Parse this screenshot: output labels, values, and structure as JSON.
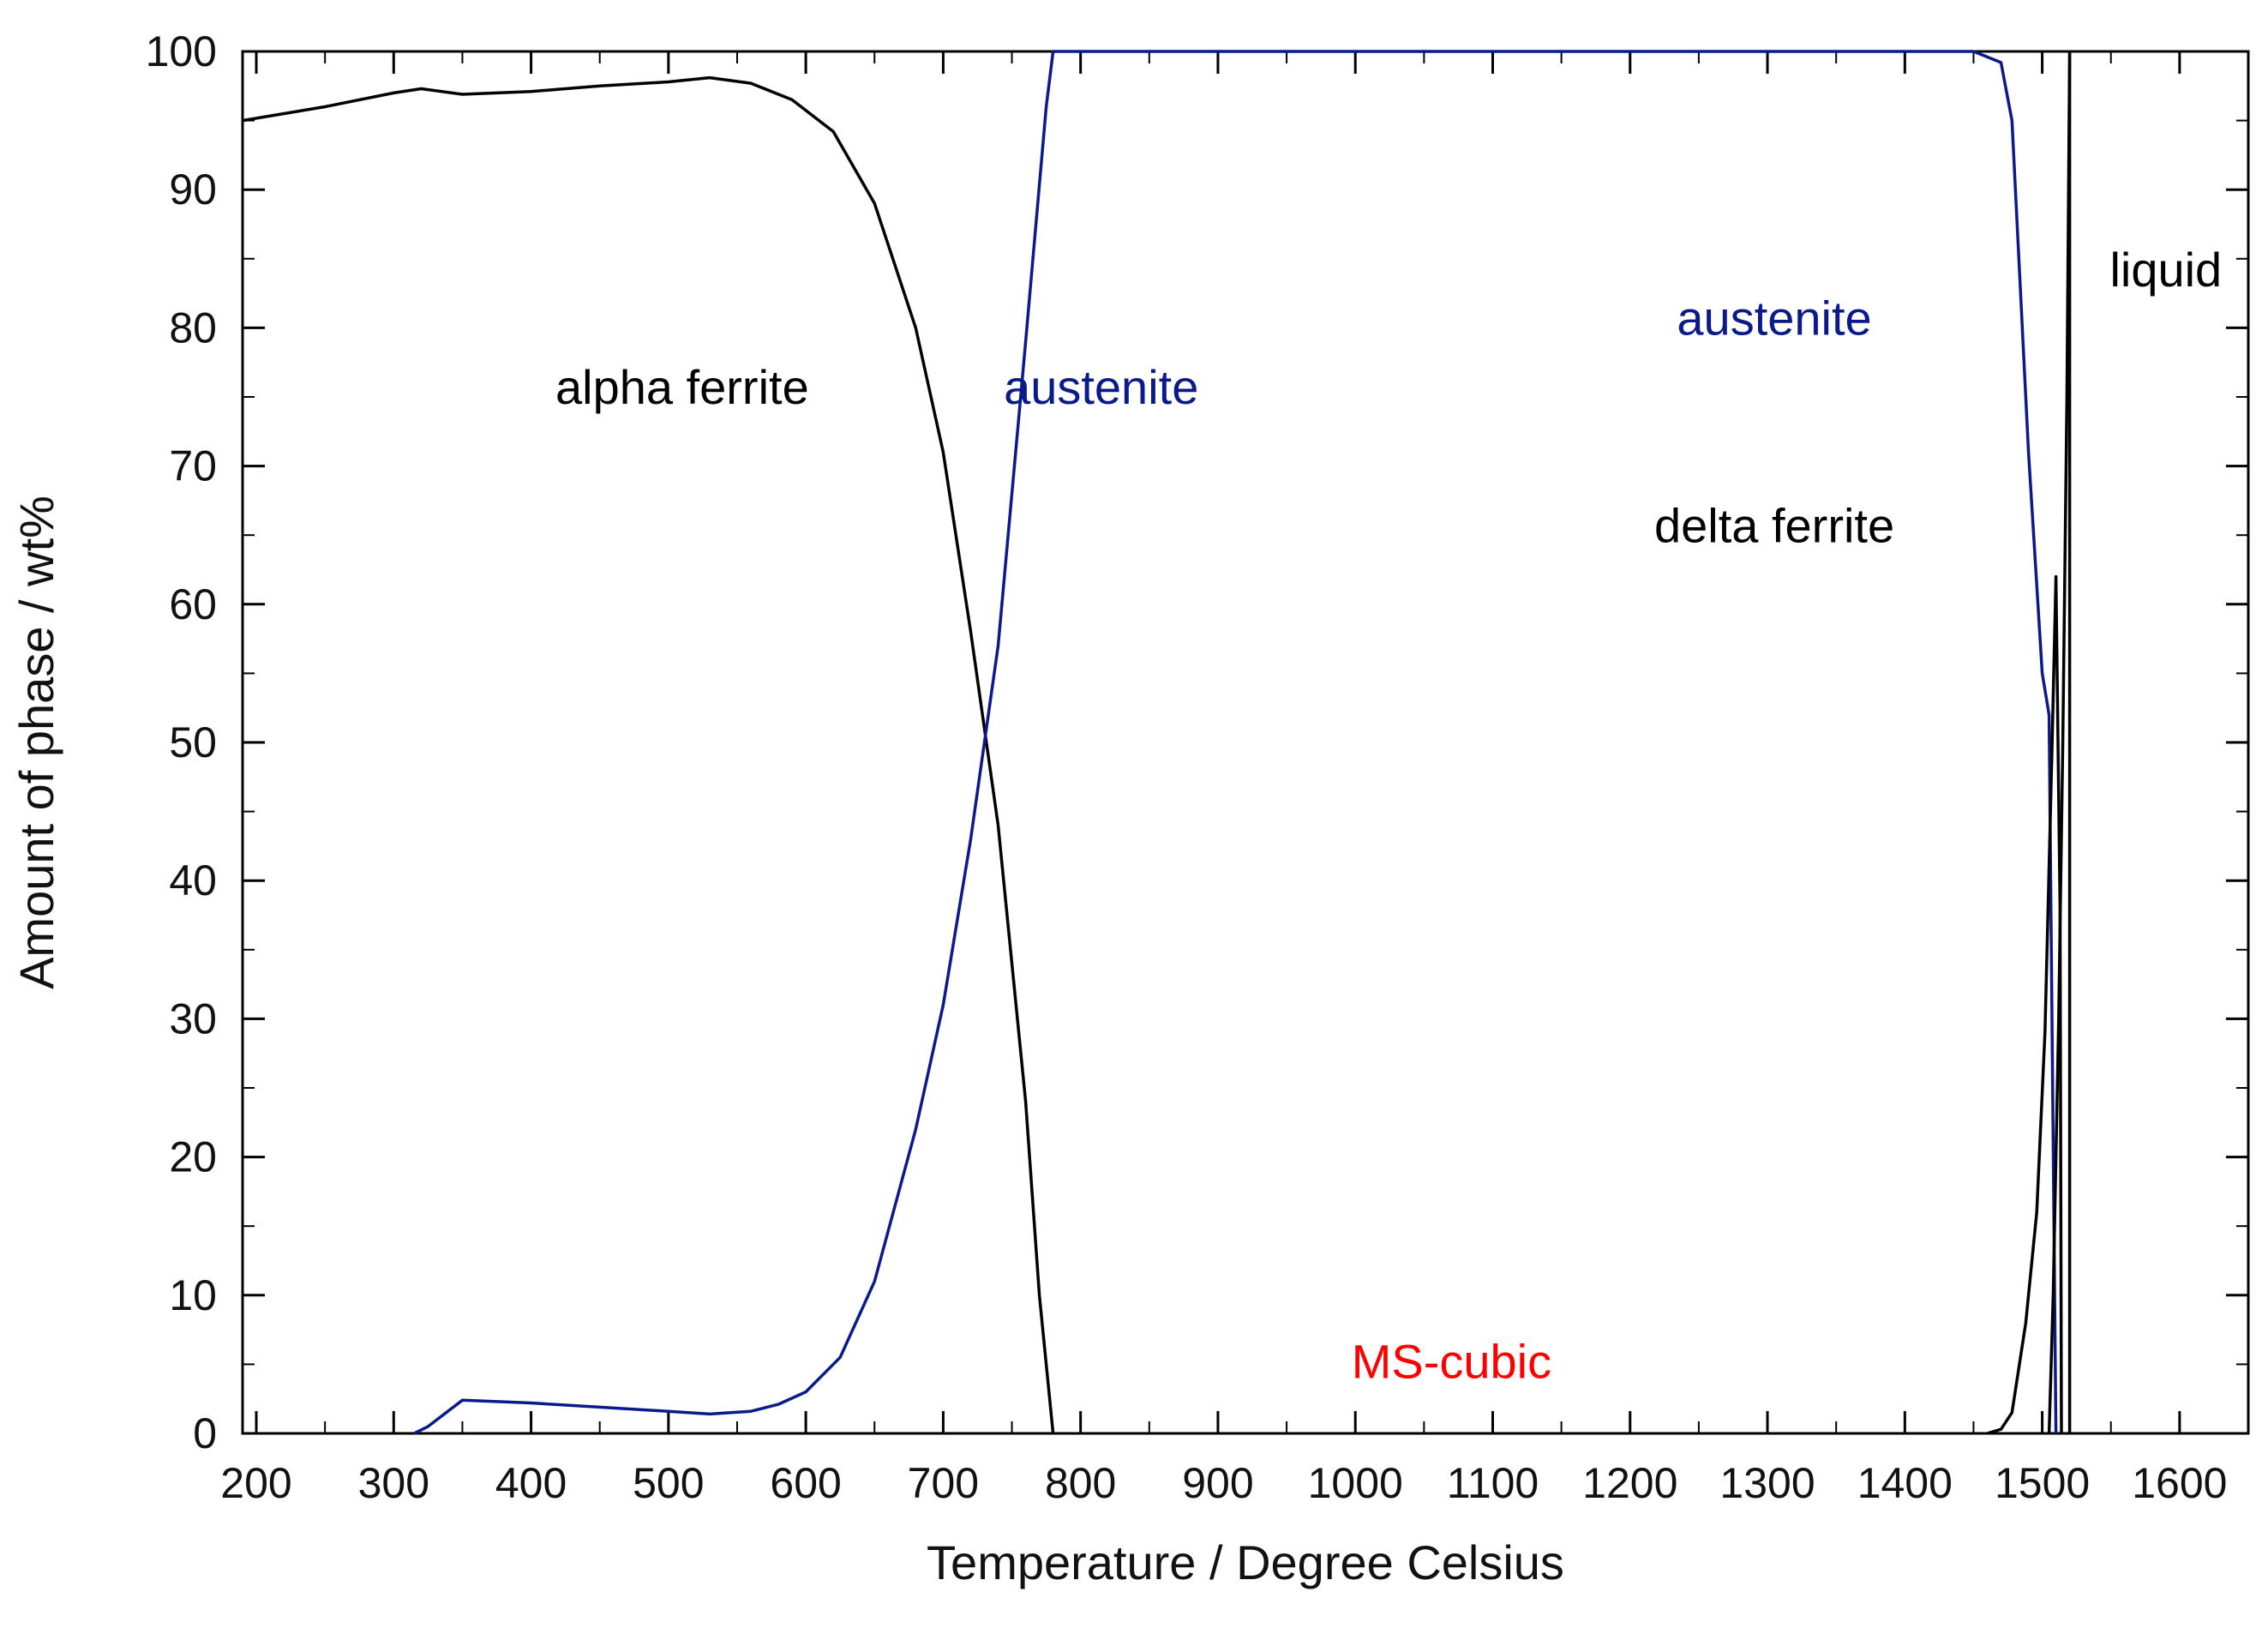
{
  "chart_data": {
    "type": "line",
    "xlabel": "Temperature / Degree Celsius",
    "ylabel": "Amount of phase / wt%",
    "xlim": [
      190,
      1650
    ],
    "ylim": [
      0,
      100
    ],
    "grid": false,
    "x_ticks": [
      200,
      300,
      400,
      500,
      600,
      700,
      800,
      900,
      1000,
      1100,
      1200,
      1300,
      1400,
      1500,
      1600
    ],
    "y_ticks": [
      0,
      10,
      20,
      30,
      40,
      50,
      60,
      70,
      80,
      90,
      100
    ],
    "series": [
      {
        "color": "#000000",
        "points": [
          [
            190,
            95
          ],
          [
            250,
            96
          ],
          [
            300,
            97
          ],
          [
            320,
            97.3
          ],
          [
            350,
            96.9
          ],
          [
            400,
            97.1
          ],
          [
            450,
            97.5
          ],
          [
            500,
            97.8
          ],
          [
            530,
            98.1
          ],
          [
            560,
            97.7
          ],
          [
            590,
            96.5
          ],
          [
            620,
            94.2
          ],
          [
            650,
            89
          ],
          [
            680,
            80
          ],
          [
            700,
            71
          ],
          [
            720,
            58
          ],
          [
            740,
            44
          ],
          [
            760,
            24
          ],
          [
            770,
            10
          ],
          [
            780,
            0
          ]
        ]
      },
      {
        "color": "#0a1a8a",
        "points": [
          [
            315,
            0
          ],
          [
            325,
            0.5
          ],
          [
            350,
            2.4
          ],
          [
            400,
            2.2
          ],
          [
            450,
            1.9
          ],
          [
            500,
            1.6
          ],
          [
            530,
            1.4
          ],
          [
            560,
            1.6
          ],
          [
            580,
            2.1
          ],
          [
            600,
            3
          ],
          [
            625,
            5.5
          ],
          [
            650,
            11
          ],
          [
            680,
            22
          ],
          [
            700,
            31
          ],
          [
            720,
            43
          ],
          [
            740,
            57
          ],
          [
            760,
            79
          ],
          [
            775,
            96
          ],
          [
            780,
            100
          ],
          [
            1000,
            100
          ],
          [
            1450,
            100
          ],
          [
            1470,
            99.2
          ],
          [
            1478,
            95
          ],
          [
            1490,
            71
          ],
          [
            1500,
            55
          ],
          [
            1505,
            52
          ],
          [
            1510,
            0
          ]
        ]
      },
      {
        "color": "#000000",
        "points": [
          [
            1460,
            0
          ],
          [
            1470,
            0.3
          ],
          [
            1478,
            1.5
          ],
          [
            1488,
            8
          ],
          [
            1496,
            16
          ],
          [
            1502,
            29
          ],
          [
            1507,
            49
          ],
          [
            1510,
            62
          ],
          [
            1513,
            38
          ],
          [
            1514,
            0
          ]
        ]
      },
      {
        "color": "#000000",
        "points": [
          [
            1505,
            0
          ],
          [
            1508,
            10
          ],
          [
            1512,
            30
          ],
          [
            1515,
            50
          ],
          [
            1518,
            75
          ],
          [
            1520,
            100
          ]
        ]
      },
      {
        "color": "#000000",
        "points": [
          [
            1520,
            0
          ],
          [
            1520,
            100
          ]
        ]
      }
    ],
    "annotations": [
      {
        "text": "alpha ferrite",
        "x": 510,
        "y": 74.5,
        "color": "#000000"
      },
      {
        "text": "austenite",
        "x": 815,
        "y": 74.5,
        "color": "#0a1a8a"
      },
      {
        "text": "austenite",
        "x": 1305,
        "y": 79.5,
        "color": "#0a1a8a"
      },
      {
        "text": "liquid",
        "x": 1590,
        "y": 83,
        "color": "#000000"
      },
      {
        "text": "delta ferrite",
        "x": 1305,
        "y": 64.5,
        "color": "#000000"
      },
      {
        "text": "MS-cubic",
        "x": 1070,
        "y": 4,
        "color": "#ff0000"
      }
    ]
  }
}
